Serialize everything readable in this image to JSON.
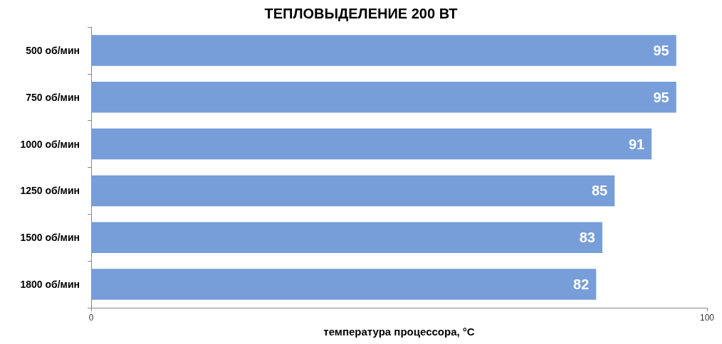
{
  "chart_data": {
    "type": "bar",
    "orientation": "horizontal",
    "title": "ТЕПЛОВЫДЕЛЕНИЕ 200 ВТ",
    "xlabel": "температура процессора, °C",
    "categories": [
      "500 об/мин",
      "750 об/мин",
      "1000 об/мин",
      "1250 об/мин",
      "1500 об/мин",
      "1800 об/мин"
    ],
    "values": [
      95,
      95,
      91,
      85,
      83,
      82
    ],
    "color": "#779ed9",
    "xlim": [
      0,
      100
    ],
    "xticks": [
      0,
      100
    ],
    "data_labels": true,
    "grid": false
  }
}
